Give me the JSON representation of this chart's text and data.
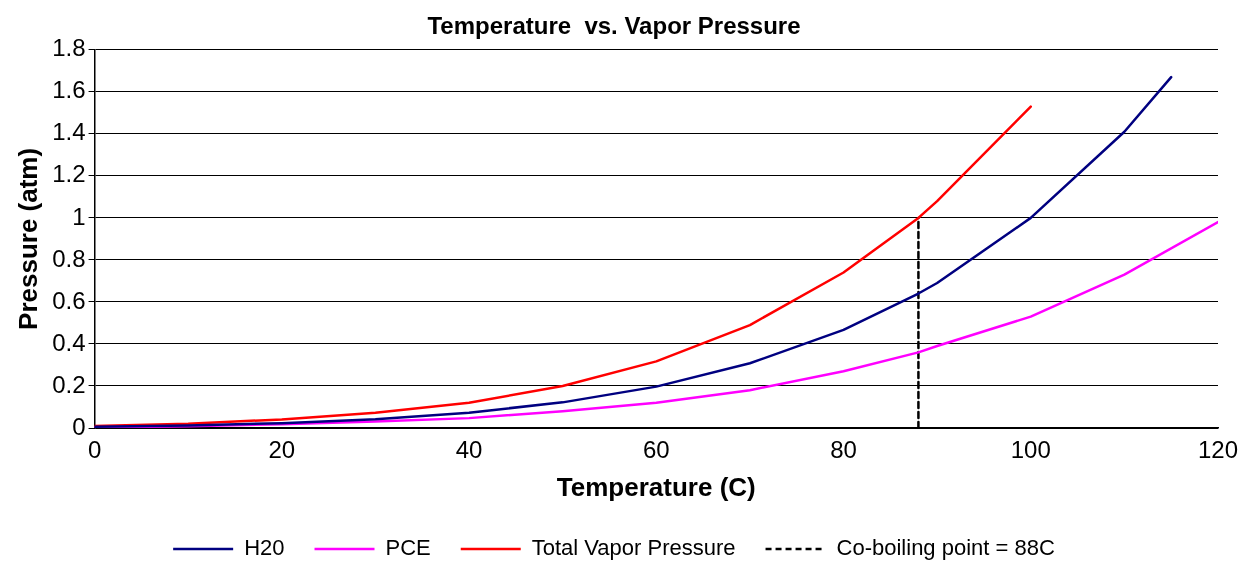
{
  "chart_data": {
    "type": "line",
    "title": "Temperature  vs. Vapor Pressure",
    "xlabel": "Temperature (C)",
    "ylabel": "Pressure (atm)",
    "xlim": [
      0,
      120
    ],
    "xticks": [
      0,
      20,
      40,
      60,
      80,
      100,
      120
    ],
    "ylim": [
      0,
      1.8
    ],
    "yticks": [
      0,
      0.2,
      0.4,
      0.6,
      0.8,
      1,
      1.2,
      1.4,
      1.6,
      1.8
    ],
    "grid": "y",
    "legend": "bottom",
    "marker": "none",
    "line_style": "solid",
    "series": [
      {
        "name": "H20",
        "color": "#000080",
        "x": [
          0,
          10,
          20,
          30,
          40,
          50,
          60,
          70,
          80,
          88,
          90,
          100,
          110,
          115
        ],
        "values": [
          0.006,
          0.012,
          0.023,
          0.042,
          0.073,
          0.122,
          0.197,
          0.308,
          0.467,
          0.64,
          0.69,
          1.0,
          1.41,
          1.67
        ]
      },
      {
        "name": "PCE",
        "color": "#ff00ff",
        "x": [
          0,
          10,
          20,
          30,
          40,
          50,
          60,
          70,
          80,
          88,
          90,
          100,
          110,
          120
        ],
        "values": [
          0.003,
          0.008,
          0.018,
          0.031,
          0.047,
          0.08,
          0.12,
          0.18,
          0.27,
          0.36,
          0.39,
          0.53,
          0.73,
          0.98
        ]
      },
      {
        "name": "Total Vapor Pressure",
        "color": "#ff0000",
        "x": [
          0,
          10,
          20,
          30,
          40,
          50,
          60,
          70,
          80,
          88,
          90,
          100
        ],
        "values": [
          0.009,
          0.02,
          0.041,
          0.073,
          0.12,
          0.2,
          0.317,
          0.49,
          0.74,
          1.0,
          1.08,
          1.53
        ]
      },
      {
        "name": "Co-boiling point = 88C",
        "color": "#000000",
        "line_style": "dashed",
        "x": [
          88,
          88
        ],
        "values": [
          0,
          1.0
        ]
      }
    ]
  }
}
